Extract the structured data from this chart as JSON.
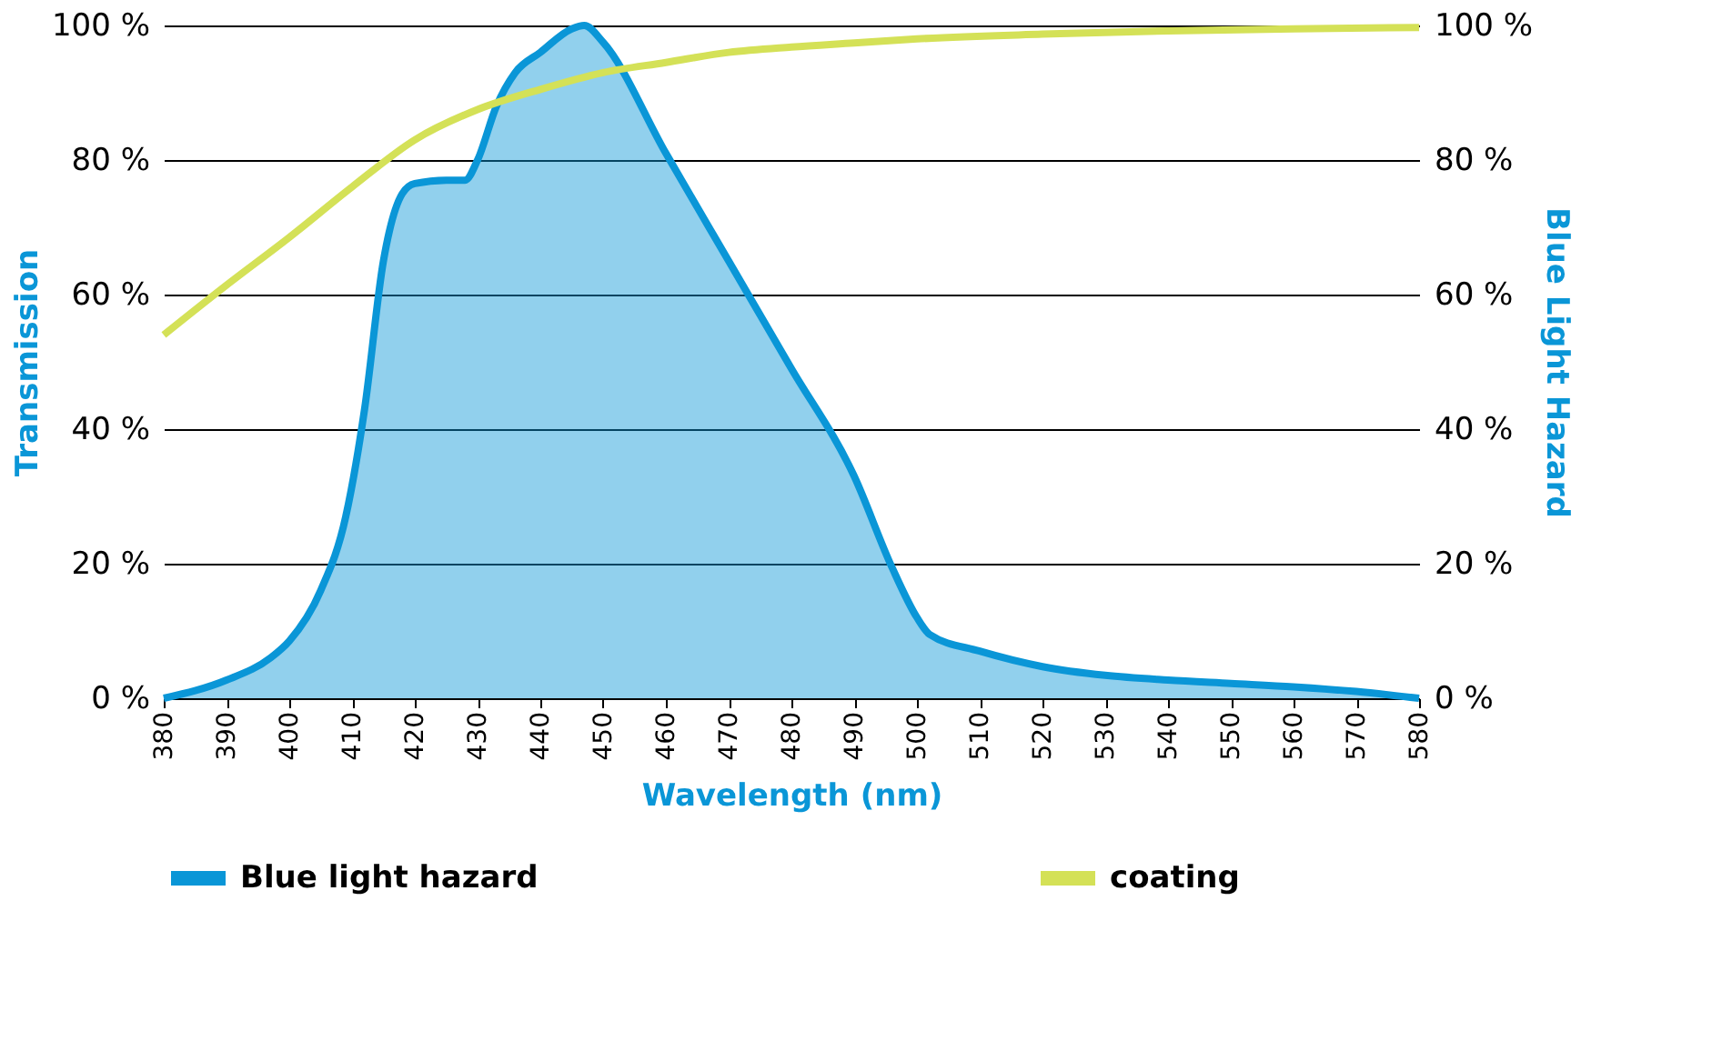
{
  "chart_data": {
    "type": "line",
    "xlabel": "Wavelength (nm)",
    "ylabel": "Transmission",
    "y2label": "Blue Light Hazard",
    "series": [
      {
        "name": "Blue light hazard",
        "type": "area",
        "axis": "y2",
        "color": "#0a96d7",
        "x": [
          380,
          390,
          397,
          400,
          405,
          409,
          412,
          415,
          418,
          420,
          425,
          428,
          430,
          433,
          436,
          440,
          445,
          447,
          450,
          460,
          470,
          480,
          490,
          496,
          500,
          502,
          510,
          520,
          530,
          540,
          550,
          560,
          570,
          580
        ],
        "values": [
          0,
          2.7,
          6,
          8.5,
          16,
          27,
          43,
          65,
          75,
          76.5,
          77,
          77,
          80,
          88,
          93,
          96,
          99.5,
          100,
          97.5,
          81,
          65,
          49,
          33,
          19.5,
          12,
          9.5,
          7,
          4.7,
          3.4,
          2.7,
          2.2,
          1.7,
          1,
          0
        ]
      },
      {
        "name": "coating",
        "color": "#d4e157",
        "x": [
          380,
          390,
          400,
          410,
          420,
          430,
          440,
          450,
          460,
          470,
          480,
          490,
          500,
          520,
          540,
          560,
          580
        ],
        "values": [
          54,
          61.4,
          68.5,
          76,
          83,
          87.5,
          90.5,
          93,
          94.5,
          96,
          96.8,
          97.4,
          98,
          98.7,
          99.2,
          99.5,
          99.7
        ]
      }
    ],
    "xlim": [
      380,
      580
    ],
    "xticks": [
      380,
      390,
      400,
      410,
      420,
      430,
      440,
      450,
      460,
      470,
      480,
      490,
      500,
      510,
      520,
      530,
      540,
      550,
      560,
      570,
      580
    ],
    "ylim": [
      0,
      100
    ],
    "yticks": [
      {
        "value": 0,
        "label": "0 %"
      },
      {
        "value": 20,
        "label": "20 %"
      },
      {
        "value": 40,
        "label": "40 %"
      },
      {
        "value": 60,
        "label": "60 %"
      },
      {
        "value": 80,
        "label": "80 %"
      },
      {
        "value": 100,
        "label": "100 %"
      }
    ],
    "y2lim": [
      0,
      100
    ],
    "y2ticks": [
      {
        "value": 0,
        "label": "0 %"
      },
      {
        "value": 20,
        "label": "20 %"
      },
      {
        "value": 40,
        "label": "40 %"
      },
      {
        "value": 60,
        "label": "60 %"
      },
      {
        "value": 80,
        "label": "80 %"
      },
      {
        "value": 100,
        "label": "100 %"
      }
    ],
    "grid": "y",
    "legend": "bottom",
    "marker": "none",
    "line_style": "solid"
  }
}
